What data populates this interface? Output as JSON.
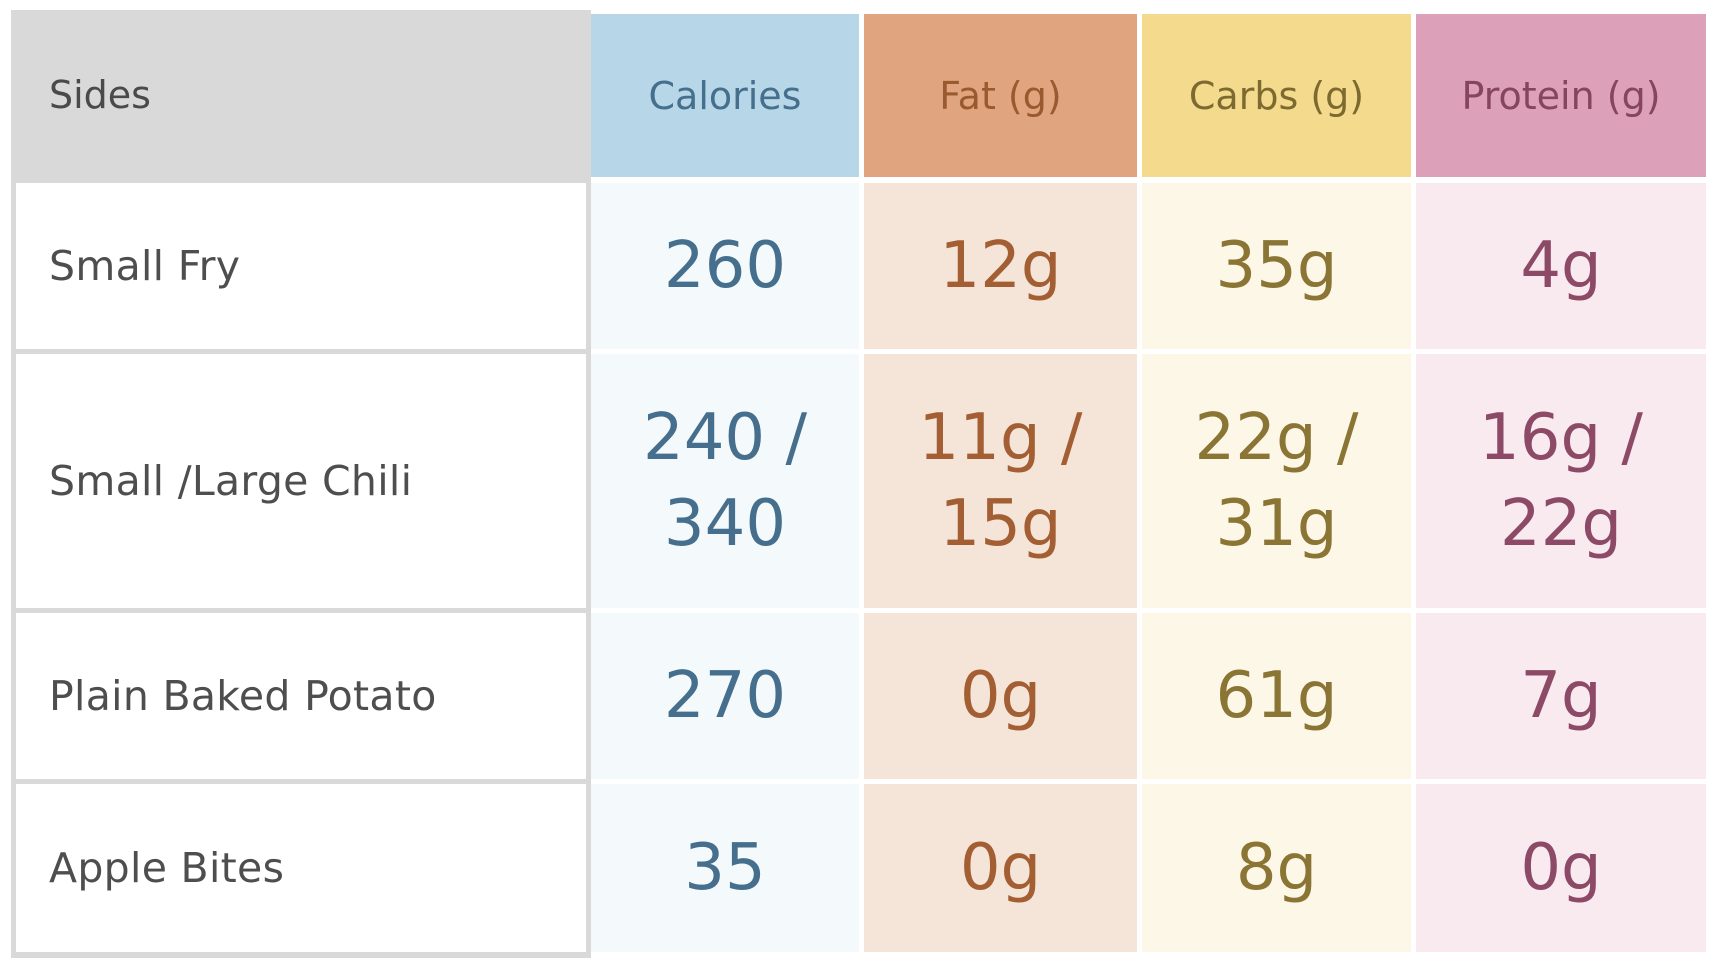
{
  "table": {
    "row_header_label": "Sides",
    "columns": [
      {
        "key": "calories",
        "label": "Calories"
      },
      {
        "key": "fat",
        "label": "Fat (g)"
      },
      {
        "key": "carbs",
        "label": "Carbs (g)"
      },
      {
        "key": "protein",
        "label": "Protein (g)"
      }
    ],
    "rows": [
      {
        "side": "Small Fry",
        "calories": "260",
        "fat": "12g",
        "carbs": "35g",
        "protein": "4g"
      },
      {
        "side": "Small  /Large Chili",
        "calories": "240 /\n340",
        "fat": "11g /\n15g",
        "carbs": "22g /\n31g",
        "protein": "16g /\n22g"
      },
      {
        "side": "Plain Baked Potato",
        "calories": "270",
        "fat": "0g",
        "carbs": "61g",
        "protein": "7g"
      },
      {
        "side": "Apple Bites",
        "calories": "35",
        "fat": "0g",
        "carbs": "8g",
        "protein": "0g"
      }
    ]
  },
  "colors": {
    "sides_header_bg": "#d9d9d9",
    "calories_header_bg": "#b7d7e8",
    "calories_cell_bg": "#f4f9fc",
    "calories_text": "#456f8c",
    "fat_header_bg": "#e0a57e",
    "fat_cell_bg": "#f5e5d9",
    "fat_text": "#a35f33",
    "carbs_header_bg": "#f4da8c",
    "carbs_cell_bg": "#fdf7e8",
    "carbs_text": "#8a7534",
    "protein_header_bg": "#dca0b8",
    "protein_cell_bg": "#f9eaf0",
    "protein_text": "#8d4a66"
  }
}
